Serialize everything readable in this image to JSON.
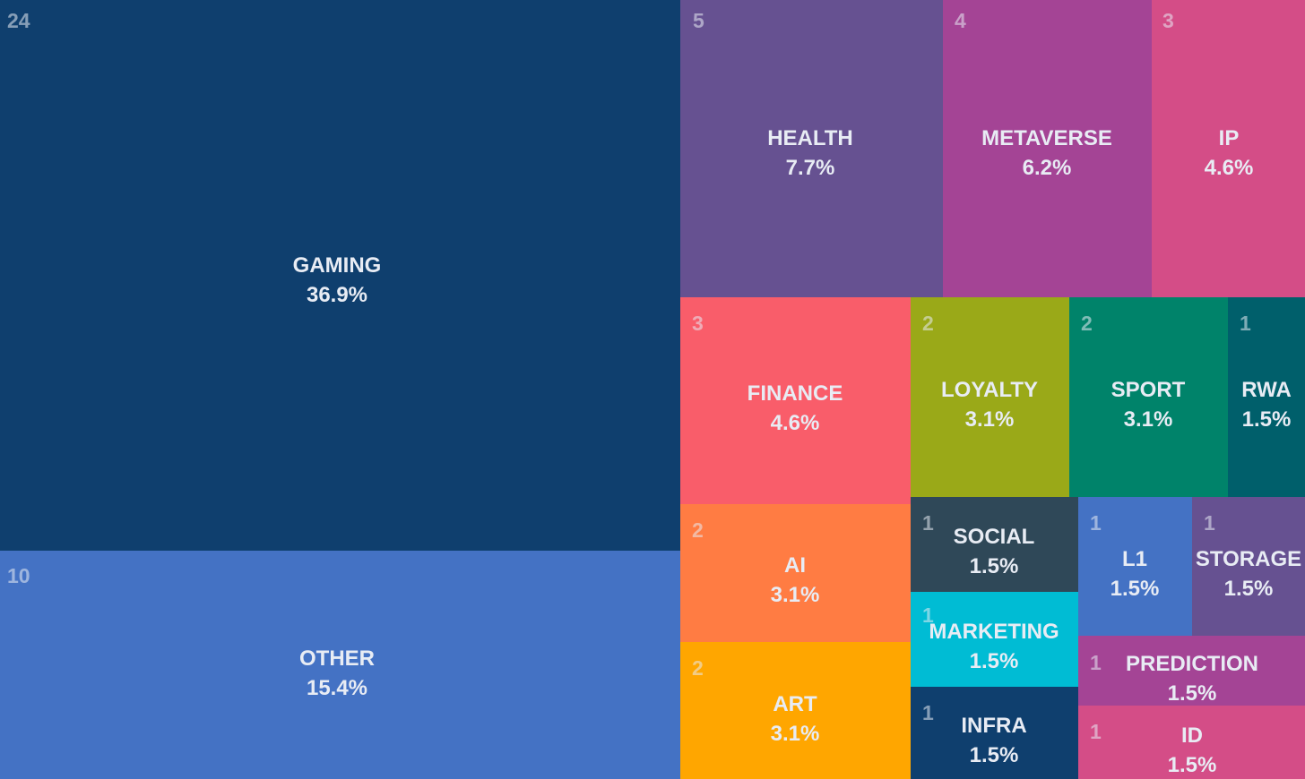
{
  "chart_data": {
    "type": "treemap",
    "title": "",
    "items": [
      {
        "name": "GAMING",
        "count": 24,
        "percent": "36.9%",
        "color": "#0f3f6e"
      },
      {
        "name": "OTHER",
        "count": 10,
        "percent": "15.4%",
        "color": "#4472c4"
      },
      {
        "name": "HEALTH",
        "count": 5,
        "percent": "7.7%",
        "color": "#665191"
      },
      {
        "name": "METAVERSE",
        "count": 4,
        "percent": "6.2%",
        "color": "#a44495"
      },
      {
        "name": "IP",
        "count": 3,
        "percent": "4.6%",
        "color": "#d44d87"
      },
      {
        "name": "FINANCE",
        "count": 3,
        "percent": "4.6%",
        "color": "#f95d6a"
      },
      {
        "name": "LOYALTY",
        "count": 2,
        "percent": "3.1%",
        "color": "#9aa918"
      },
      {
        "name": "SPORT",
        "count": 2,
        "percent": "3.1%",
        "color": "#00836a"
      },
      {
        "name": "RWA",
        "count": 1,
        "percent": "1.5%",
        "color": "#005f6b"
      },
      {
        "name": "AI",
        "count": 2,
        "percent": "3.1%",
        "color": "#ff7c43"
      },
      {
        "name": "ART",
        "count": 2,
        "percent": "3.1%",
        "color": "#ffa600"
      },
      {
        "name": "SOCIAL",
        "count": 1,
        "percent": "1.5%",
        "color": "#2f4858"
      },
      {
        "name": "MARKETING",
        "count": 1,
        "percent": "1.5%",
        "color": "#00bcd4"
      },
      {
        "name": "INFRA",
        "count": 1,
        "percent": "1.5%",
        "color": "#0f3f6e"
      },
      {
        "name": "L1",
        "count": 1,
        "percent": "1.5%",
        "color": "#4472c4"
      },
      {
        "name": "STORAGE",
        "count": 1,
        "percent": "1.5%",
        "color": "#665191"
      },
      {
        "name": "PREDICTION",
        "count": 1,
        "percent": "1.5%",
        "color": "#a44495"
      },
      {
        "name": "ID",
        "count": 1,
        "percent": "1.5%",
        "color": "#d44d87"
      }
    ]
  }
}
